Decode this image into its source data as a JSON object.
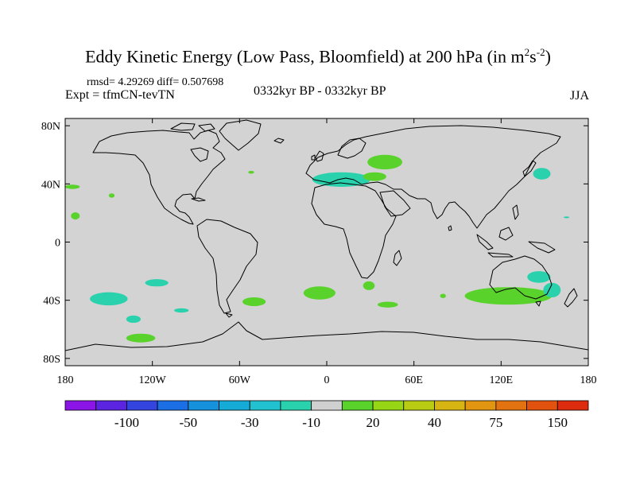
{
  "title_main": "Eddy Kinetic Energy (Low Pass, Bloomfield) at 200 hPa (in m",
  "title_sup1": "2",
  "title_mid": "s",
  "title_sup2": "-2",
  "title_end": ")",
  "stats": "rmsd= 4.29269 diff= 0.507698",
  "experiment": "Expt = tfmCN-tevTN",
  "period": "0332kyr BP - 0332kyr BP",
  "season": "JJA",
  "map": {
    "background_color": "#d3d3d3",
    "x_ticks": [
      {
        "lon": -180,
        "label": "180"
      },
      {
        "lon": -120,
        "label": "120W"
      },
      {
        "lon": -60,
        "label": "60W"
      },
      {
        "lon": 0,
        "label": "0"
      },
      {
        "lon": 60,
        "label": "60E"
      },
      {
        "lon": 120,
        "label": "120E"
      },
      {
        "lon": 180,
        "label": "180"
      }
    ],
    "y_ticks": [
      {
        "lat": 80,
        "label": "80N"
      },
      {
        "lat": 40,
        "label": "40N"
      },
      {
        "lat": 0,
        "label": "0"
      },
      {
        "lat": -40,
        "label": "40S"
      },
      {
        "lat": -80,
        "label": "80S"
      }
    ],
    "anomaly_regions": [
      {
        "lon": 40,
        "lat": 55,
        "rlon": 12,
        "rlat": 5,
        "color": "#5ad22c"
      },
      {
        "lon": 10,
        "lat": 43,
        "rlon": 20,
        "rlat": 5,
        "color": "#2ad1ad"
      },
      {
        "lon": 33,
        "lat": 45,
        "rlon": 8,
        "rlat": 3,
        "color": "#5ad22c"
      },
      {
        "lon": 148,
        "lat": 47,
        "rlon": 6,
        "rlat": 4,
        "color": "#2ad1ad"
      },
      {
        "lon": -175,
        "lat": 38,
        "rlon": 5,
        "rlat": 1.5,
        "color": "#5ad22c"
      },
      {
        "lon": -148,
        "lat": 32,
        "rlon": 2,
        "rlat": 1.5,
        "color": "#5ad22c"
      },
      {
        "lon": -173,
        "lat": 18,
        "rlon": 3,
        "rlat": 2.5,
        "color": "#5ad22c"
      },
      {
        "lon": -52,
        "lat": 48,
        "rlon": 2,
        "rlat": 1,
        "color": "#5ad22c"
      },
      {
        "lon": -150,
        "lat": -39,
        "rlon": 13,
        "rlat": 4.5,
        "color": "#2ad1ad"
      },
      {
        "lon": -117,
        "lat": -28,
        "rlon": 8,
        "rlat": 2.5,
        "color": "#2ad1ad"
      },
      {
        "lon": -133,
        "lat": -53,
        "rlon": 5,
        "rlat": 2.5,
        "color": "#2ad1ad"
      },
      {
        "lon": -128,
        "lat": -66,
        "rlon": 10,
        "rlat": 3,
        "color": "#5ad22c"
      },
      {
        "lon": -100,
        "lat": -47,
        "rlon": 5,
        "rlat": 1.5,
        "color": "#2ad1ad"
      },
      {
        "lon": -50,
        "lat": -41,
        "rlon": 8,
        "rlat": 3,
        "color": "#5ad22c"
      },
      {
        "lon": -5,
        "lat": -35,
        "rlon": 11,
        "rlat": 4.5,
        "color": "#5ad22c"
      },
      {
        "lon": 29,
        "lat": -30,
        "rlon": 4,
        "rlat": 3,
        "color": "#5ad22c"
      },
      {
        "lon": 42,
        "lat": -43,
        "rlon": 7,
        "rlat": 2,
        "color": "#5ad22c"
      },
      {
        "lon": 80,
        "lat": -37,
        "rlon": 2,
        "rlat": 1.5,
        "color": "#5ad22c"
      },
      {
        "lon": 125,
        "lat": -37,
        "rlon": 30,
        "rlat": 6,
        "color": "#5ad22c"
      },
      {
        "lon": 146,
        "lat": -24,
        "rlon": 8,
        "rlat": 4,
        "color": "#2ad1ad"
      },
      {
        "lon": 155,
        "lat": -33,
        "rlon": 6,
        "rlat": 5,
        "color": "#2ad1ad"
      },
      {
        "lon": 165,
        "lat": 17,
        "rlon": 2,
        "rlat": 0.6,
        "color": "#2ad1ad"
      }
    ]
  },
  "colorbar": {
    "colors": [
      "#8b14e6",
      "#5a24e0",
      "#3344df",
      "#1b6ee3",
      "#1691db",
      "#16aad6",
      "#22c1cf",
      "#2ad1ad",
      "#d0d0d0",
      "#5ad22c",
      "#97d615",
      "#b8cc14",
      "#d6b411",
      "#e19510",
      "#e27310",
      "#e0520e",
      "#dd2b0e"
    ],
    "labels": [
      {
        "after_box": 2,
        "text": "-100"
      },
      {
        "after_box": 4,
        "text": "-50"
      },
      {
        "after_box": 6,
        "text": "-30"
      },
      {
        "after_box": 8,
        "text": "-10"
      },
      {
        "after_box": 10,
        "text": "20"
      },
      {
        "after_box": 12,
        "text": "40"
      },
      {
        "after_box": 14,
        "text": "75"
      },
      {
        "after_box": 16,
        "text": "150"
      }
    ]
  }
}
